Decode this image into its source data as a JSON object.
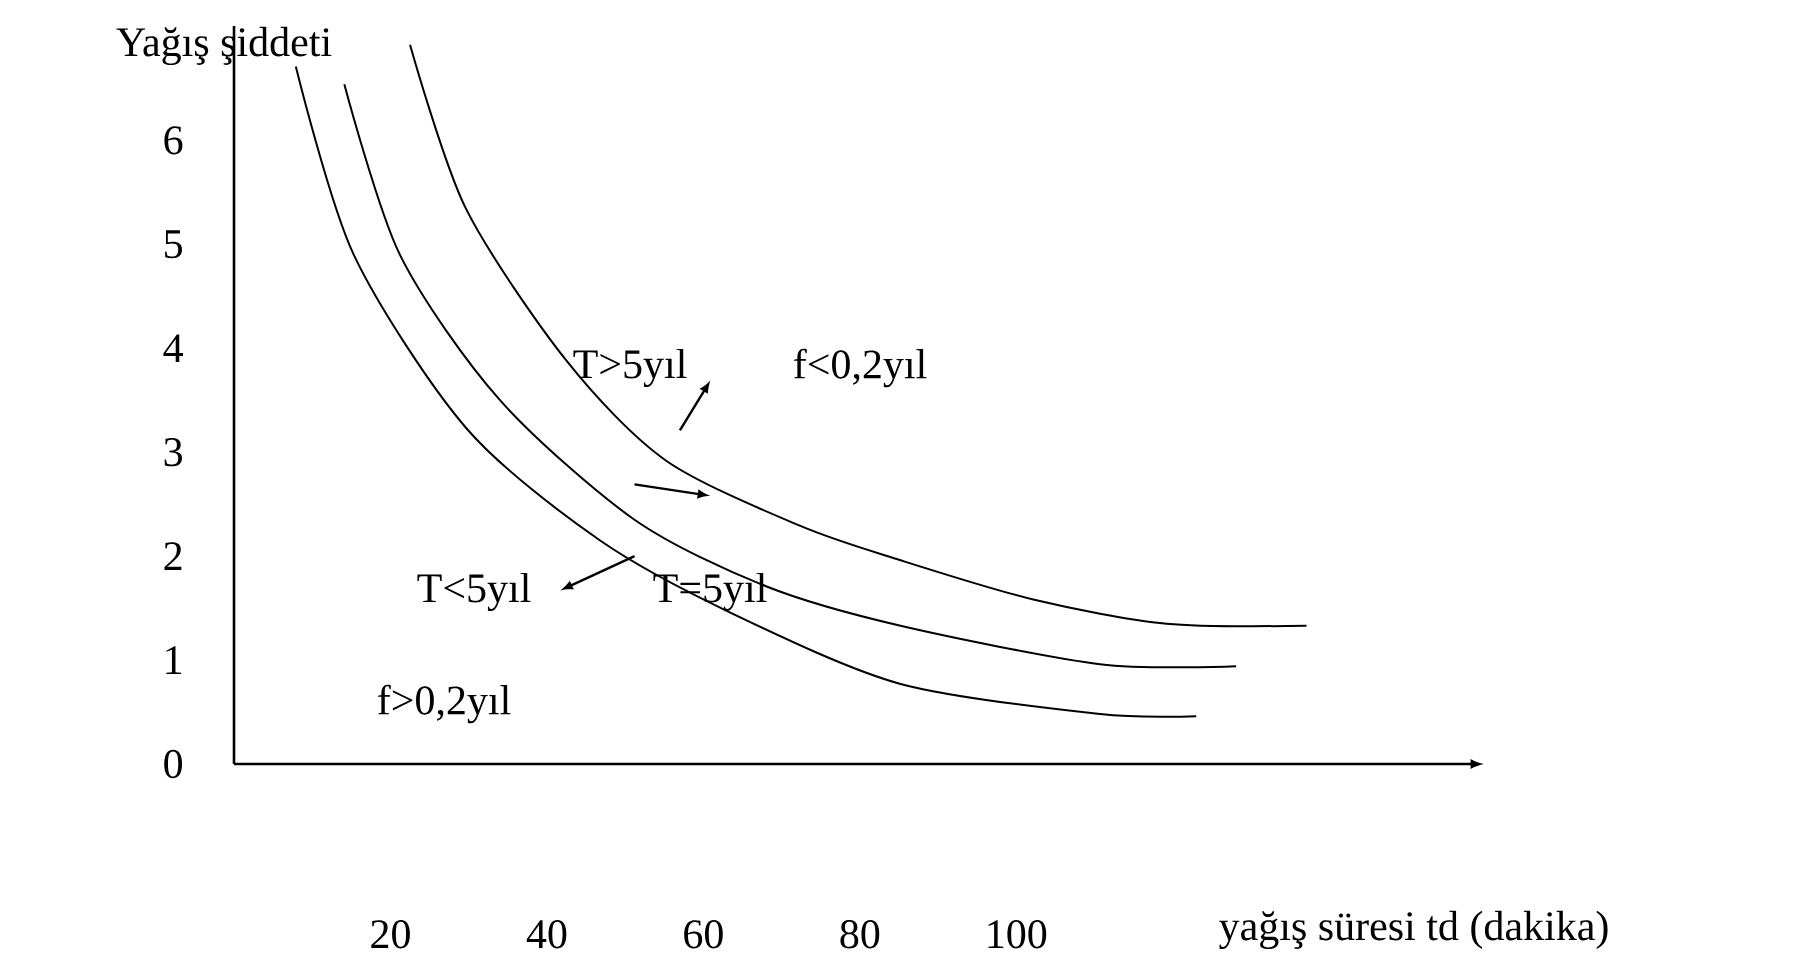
{
  "chart_data": {
    "type": "line",
    "ylabel": "Yağış şiddeti",
    "xlabel": "yağış süresi td (dakika)",
    "xlim": [
      0,
      158
    ],
    "ylim": [
      0,
      7.1
    ],
    "xticks": [
      20,
      40,
      60,
      80,
      100
    ],
    "yticks": [
      0,
      1,
      2,
      3,
      4,
      5,
      6
    ],
    "marker": "none",
    "line_style": "solid",
    "grid": false,
    "series": [
      {
        "color": "#000000",
        "x": [
          22.5,
          29.6,
          42.5,
          55.2,
          72.4,
          85.2,
          102.3,
          119.2,
          137.1
        ],
        "values": [
          6.92,
          5.35,
          3.88,
          2.92,
          2.29,
          1.96,
          1.58,
          1.35,
          1.33
        ]
      },
      {
        "color": "#000000",
        "x": [
          14.1,
          21.2,
          34.0,
          51.2,
          68.0,
          85.2,
          110.7,
          128.1
        ],
        "values": [
          6.54,
          4.9,
          3.5,
          2.35,
          1.71,
          1.33,
          0.96,
          0.94
        ]
      },
      {
        "color": "#000000",
        "x": [
          7.9,
          15.3,
          29.7,
          46.8,
          63.9,
          85.2,
          110.7,
          123.0
        ],
        "values": [
          6.71,
          4.9,
          3.23,
          2.15,
          1.44,
          0.77,
          0.48,
          0.46
        ]
      }
    ],
    "annotations": [
      "T>5yıl",
      "f<0,2yıl",
      "T<5yıl",
      "T=5yıl",
      "f>0,2yıl"
    ]
  }
}
